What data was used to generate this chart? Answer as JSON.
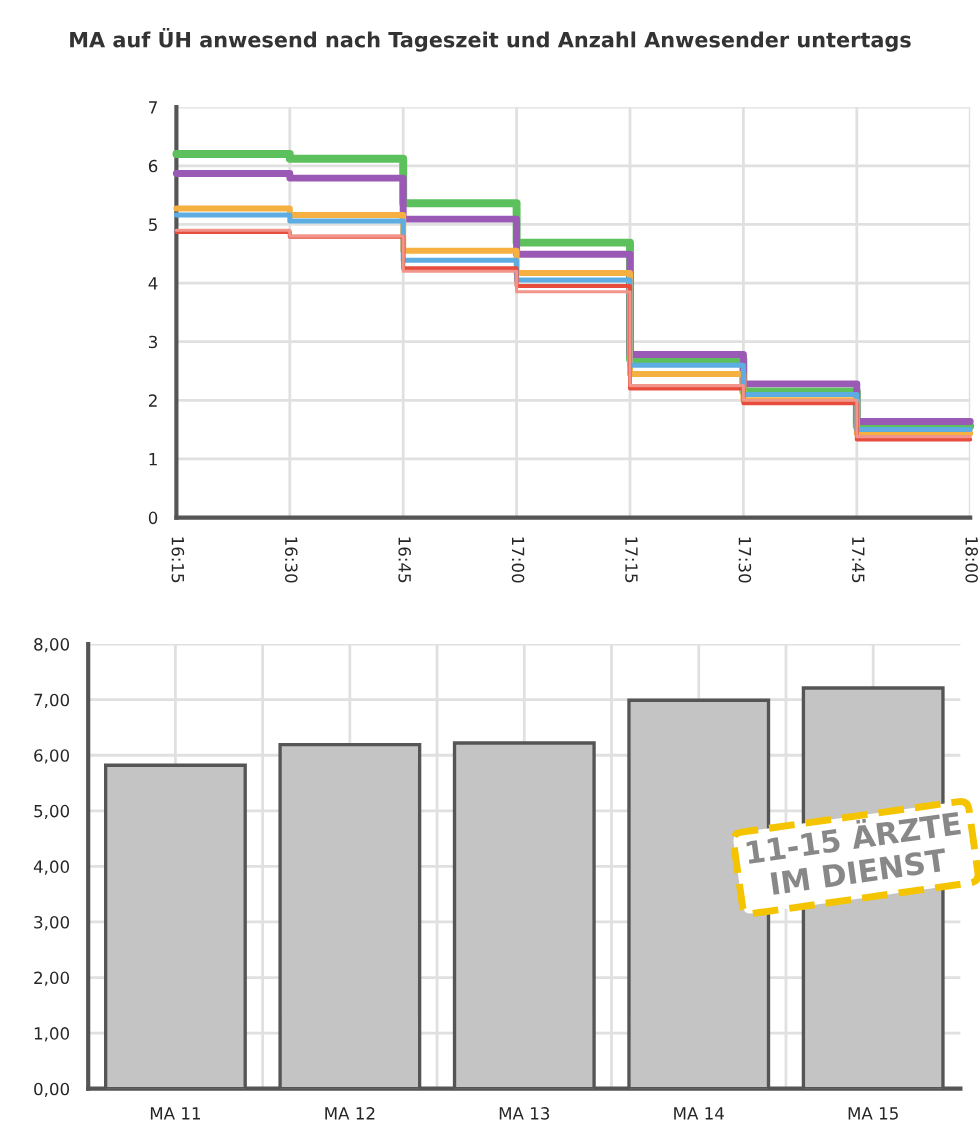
{
  "chart_data": [
    {
      "type": "step",
      "title": "MA auf ÜH anwesend nach Tageszeit und Anzahl Anwesender untertags",
      "x": [
        16.25,
        16.5,
        16.75,
        17.0,
        17.25,
        17.5,
        17.75,
        18.0
      ],
      "series": [
        {
          "color": "#5cc15c",
          "values": [
            6.2,
            6.12,
            5.36,
            4.69,
            2.7,
            2.15,
            1.56,
            1.56
          ]
        },
        {
          "color": "#9b59b6",
          "values": [
            5.87,
            5.79,
            5.09,
            4.49,
            2.78,
            2.28,
            1.64,
            1.64
          ]
        },
        {
          "color": "#f5b041",
          "values": [
            5.27,
            5.16,
            4.55,
            4.17,
            2.45,
            2.0,
            1.44,
            1.44
          ]
        },
        {
          "color": "#5dade2",
          "values": [
            5.16,
            5.06,
            4.39,
            4.05,
            2.6,
            2.1,
            1.5,
            1.5
          ]
        },
        {
          "color": "#e74c3c",
          "values": [
            4.87,
            4.79,
            4.25,
            3.95,
            2.2,
            1.95,
            1.33,
            1.33
          ]
        },
        {
          "color": "#f1948a",
          "values": [
            4.9,
            4.8,
            4.2,
            3.85,
            2.25,
            2.0,
            1.38,
            1.38
          ]
        }
      ],
      "xlim": [
        16.25,
        18.0
      ],
      "xticks": [
        {
          "value": 16.25,
          "label": "16:15"
        },
        {
          "value": 16.5,
          "label": "16:30"
        },
        {
          "value": 16.75,
          "label": "16:45"
        },
        {
          "value": 17.0,
          "label": "17:00"
        },
        {
          "value": 17.25,
          "label": "17:15"
        },
        {
          "value": 17.5,
          "label": "17:30"
        },
        {
          "value": 17.75,
          "label": "17:45"
        },
        {
          "value": 18.0,
          "label": "18:00"
        }
      ],
      "ylim": [
        0,
        7
      ],
      "yticks": [
        0,
        1,
        2,
        3,
        4,
        5,
        6,
        7
      ],
      "grid": true,
      "legend": false
    },
    {
      "type": "bar",
      "categories": [
        "MA 11",
        "MA 12",
        "MA 13",
        "MA 14",
        "MA 15"
      ],
      "values": [
        5.82,
        6.19,
        6.22,
        6.99,
        7.21
      ],
      "color": "#c4c4c4",
      "ylim": [
        0,
        8
      ],
      "yticks": [
        {
          "value": 0,
          "label": "0,00"
        },
        {
          "value": 1,
          "label": "1,00"
        },
        {
          "value": 2,
          "label": "2,00"
        },
        {
          "value": 3,
          "label": "3,00"
        },
        {
          "value": 4,
          "label": "4,00"
        },
        {
          "value": 5,
          "label": "5,00"
        },
        {
          "value": 6,
          "label": "6,00"
        },
        {
          "value": 7,
          "label": "7,00"
        },
        {
          "value": 8,
          "label": "8,00"
        }
      ],
      "grid": true,
      "legend": false,
      "annotations": [
        "11-15 ÄRZTE\nIM DIENST"
      ]
    }
  ]
}
